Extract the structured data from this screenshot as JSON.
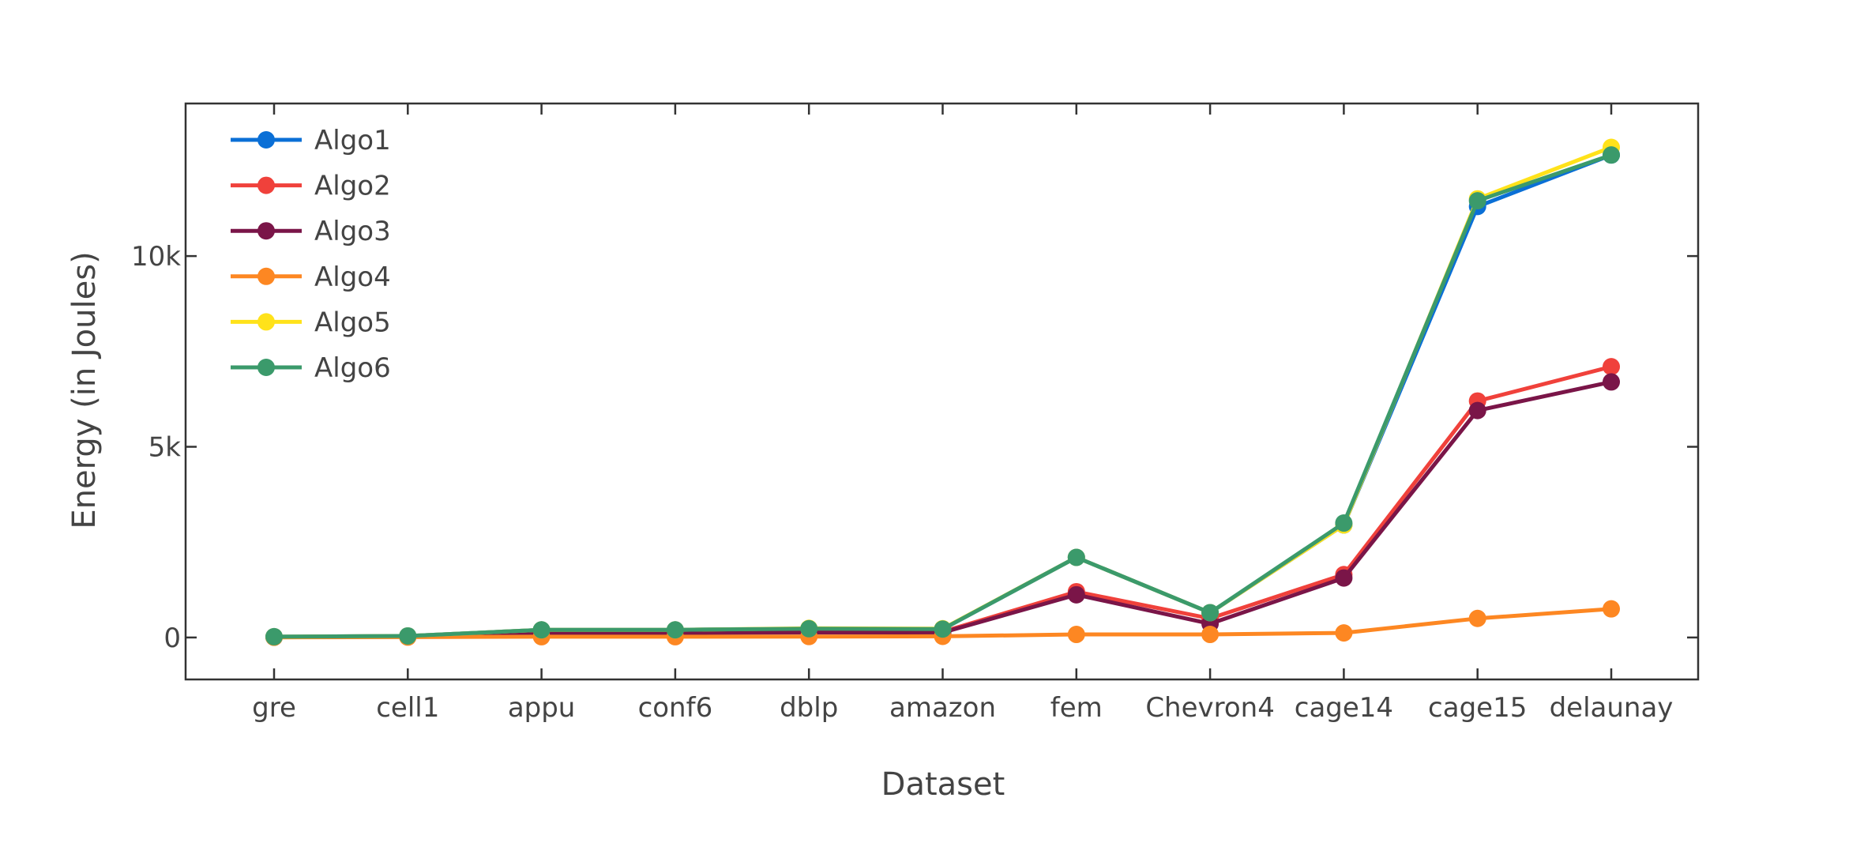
{
  "chart_data": {
    "type": "line",
    "title": "",
    "xlabel": "Dataset",
    "ylabel": "Energy (in Joules)",
    "categories": [
      "gre",
      "cell1",
      "appu",
      "conf6",
      "dblp",
      "amazon",
      "fem",
      "Chevron4",
      "cage14",
      "cage15",
      "delaunay"
    ],
    "ylim": [
      -1100,
      14000
    ],
    "yticks": [
      0,
      5000,
      10000
    ],
    "ytick_labels": [
      "0",
      "5k",
      "10k"
    ],
    "grid": false,
    "legend_position": "top-left",
    "series": [
      {
        "name": "Algo1",
        "color": "#0a6fd6",
        "values": [
          20,
          40,
          200,
          200,
          230,
          220,
          2100,
          650,
          2950,
          11300,
          12650
        ]
      },
      {
        "name": "Algo2",
        "color": "#f0413b",
        "values": [
          15,
          30,
          130,
          130,
          150,
          150,
          1200,
          500,
          1650,
          6200,
          7100
        ]
      },
      {
        "name": "Algo3",
        "color": "#7a1548",
        "values": [
          10,
          25,
          120,
          120,
          130,
          130,
          1120,
          360,
          1560,
          5950,
          6700
        ]
      },
      {
        "name": "Algo4",
        "color": "#fd8722",
        "values": [
          5,
          10,
          20,
          20,
          25,
          30,
          80,
          80,
          120,
          500,
          750
        ]
      },
      {
        "name": "Algo5",
        "color": "#ffe21a",
        "values": [
          20,
          40,
          200,
          200,
          240,
          230,
          2100,
          650,
          2950,
          11500,
          12850
        ]
      },
      {
        "name": "Algo6",
        "color": "#3b9a6b",
        "values": [
          20,
          40,
          200,
          200,
          230,
          220,
          2100,
          650,
          3000,
          11450,
          12650
        ]
      }
    ]
  }
}
